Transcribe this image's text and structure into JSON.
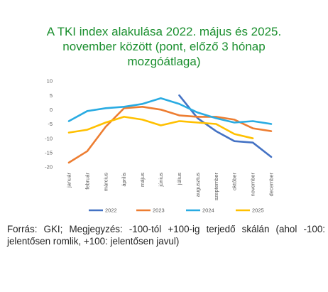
{
  "title_lines": [
    "A TKI index alakulása 2022. május és 2025.",
    "november között (pont, előző 3 hónap",
    "mozgóátlaga)"
  ],
  "source_note": "Forrás: GKI; Megjegyzés: -100-tól +100-ig terjedő skálán (ahol -100: jelentősen romlik, +100: jelentősen javul)",
  "colors": {
    "title": "#1a8f2e",
    "2022": "#4472c4",
    "2023": "#ed7d31",
    "2024": "#29abe2",
    "2025": "#ffc000"
  },
  "chart_data": {
    "type": "line",
    "title": "A TKI index alakulása 2022. május és 2025. november között (pont, előző 3 hónap mozgóátlaga)",
    "categories": [
      "január",
      "február",
      "március",
      "április",
      "május",
      "június",
      "július",
      "augusztus",
      "szeptember",
      "október",
      "november",
      "december"
    ],
    "ylim": [
      -20,
      10
    ],
    "yticks": [
      10,
      5,
      0,
      -5,
      -10,
      -15,
      -20
    ],
    "grid": false,
    "legend_position": "bottom",
    "series": [
      {
        "name": "2022",
        "color": "#4472c4",
        "values": [
          null,
          null,
          null,
          null,
          null,
          null,
          5,
          -3,
          -7.5,
          -11,
          -11.5,
          -16.5
        ]
      },
      {
        "name": "2023",
        "color": "#ed7d31",
        "values": [
          -18.5,
          -14.5,
          -6,
          0.5,
          1,
          0,
          -2,
          -2.5,
          -2.5,
          -3.5,
          -6.5,
          -7.5
        ]
      },
      {
        "name": "2024",
        "color": "#29abe2",
        "values": [
          -4,
          -0.5,
          0.5,
          1,
          2,
          4,
          2,
          -1,
          -3,
          -4.5,
          -4,
          -5
        ]
      },
      {
        "name": "2025",
        "color": "#ffc000",
        "values": [
          -8,
          -7,
          -4.5,
          -2.5,
          -3.5,
          -5.5,
          -4,
          -4.5,
          -5,
          -8.5,
          -10,
          null
        ]
      }
    ]
  }
}
